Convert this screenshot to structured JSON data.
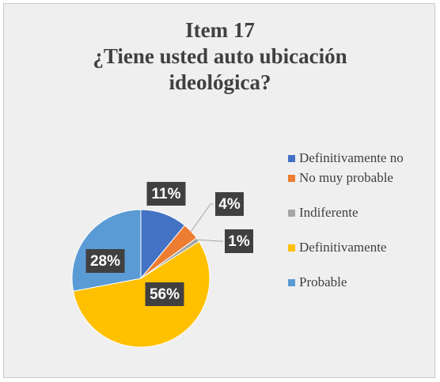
{
  "chart_data": {
    "type": "pie",
    "title": "Item 17",
    "subtitle": "¿Tiene usted auto ubicación ideológica?",
    "categories": [
      "Definitivamente no",
      "No muy probable",
      "Indiferente",
      "Definitivamente",
      "Probable"
    ],
    "values": [
      11,
      4,
      1,
      56,
      28
    ],
    "value_labels": [
      "11%",
      "4%",
      "1%",
      "56%",
      "28%"
    ],
    "colors": [
      "#4472c4",
      "#ed7d31",
      "#a5a5a5",
      "#ffc000",
      "#5b9bd5"
    ],
    "legend": "right"
  }
}
